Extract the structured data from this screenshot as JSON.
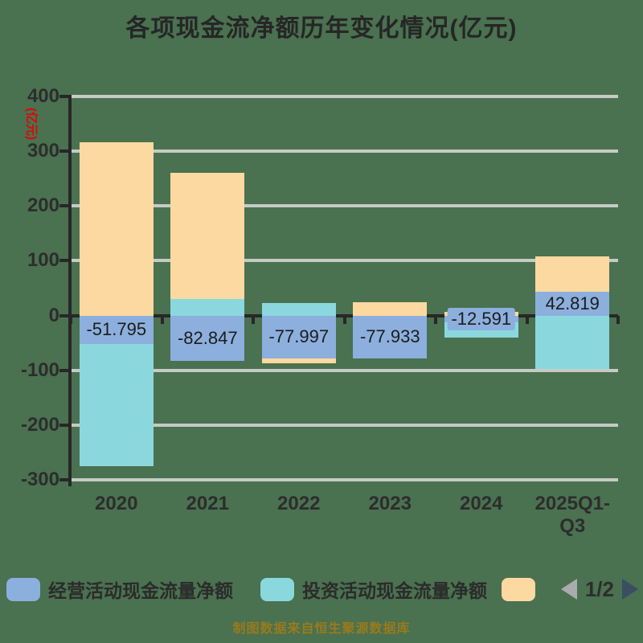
{
  "title": "各项现金流净额历年变化情况(亿元)",
  "y_axis_unit": "(亿元)",
  "footer_credit": "制图数据来自恒生聚源数据库",
  "colors": {
    "background": "#4a7150",
    "gridline": "#c5cbc5",
    "axis": "#272727",
    "operating_blue": "#8cafdd",
    "investing_teal": "#8ad8de",
    "financing_orange": "#fcd9a0",
    "unit_label_red": "#e10600",
    "footer_gold": "#9a7a1c",
    "pager_prev_gray": "#a9abad",
    "pager_next_dark": "#394d63"
  },
  "legend": {
    "items": [
      {
        "label": "经营活动现金流量净额",
        "color": "#8cafdd"
      },
      {
        "label": "投资活动现金流量净额",
        "color": "#8ad8de"
      },
      {
        "label": "",
        "color": "#fcd9a0"
      }
    ],
    "pagination": {
      "current": "1/2",
      "prev_icon": "left-triangle",
      "next_icon": "right-triangle"
    }
  },
  "chart_data": {
    "type": "bar",
    "stacked": true,
    "title": "各项现金流净额历年变化情况(亿元)",
    "ylabel": "(亿元)",
    "categories": [
      "2020",
      "2021",
      "2022",
      "2023",
      "2024",
      "2025Q1-Q3"
    ],
    "series": [
      {
        "name": "经营活动现金流量净额",
        "color": "#8cafdd",
        "values": [
          -51.795,
          -82.847,
          -77.997,
          -77.933,
          -12.591,
          42.819
        ]
      },
      {
        "name": "投资活动现金流量净额",
        "color": "#8ad8de",
        "values": [
          -223,
          30,
          23,
          0,
          -28,
          -98
        ]
      },
      {
        "name": "",
        "color": "#fcd9a0",
        "values": [
          316,
          230,
          -9,
          25,
          7,
          65
        ]
      }
    ],
    "bar_labels": [
      "-51.795",
      "-82.847",
      "-77.997",
      "-77.933",
      "-12.591",
      "42.819"
    ],
    "yticks": [
      400,
      300,
      200,
      100,
      0,
      -100,
      -200,
      -300
    ],
    "ylim": [
      -300,
      400
    ],
    "grid": true,
    "legend_position": "bottom",
    "legend_page": "1/2"
  }
}
